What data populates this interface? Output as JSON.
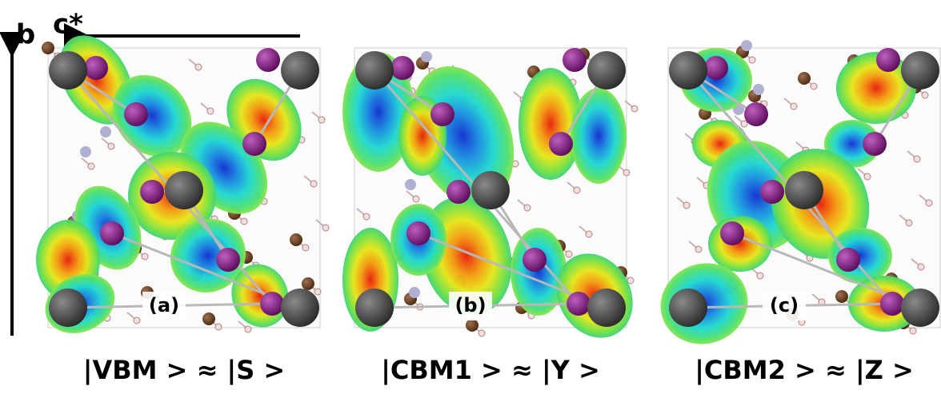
{
  "axes": {
    "vertical": "b",
    "horizontal": "c*"
  },
  "panels": [
    {
      "label": "(a)",
      "caption": "|VBM > ≈ |S >"
    },
    {
      "label": "(b)",
      "caption": "|CBM1 > ≈ |Y >"
    },
    {
      "label": "(c)",
      "caption": "|CBM2 > ≈ |Z >"
    }
  ]
}
